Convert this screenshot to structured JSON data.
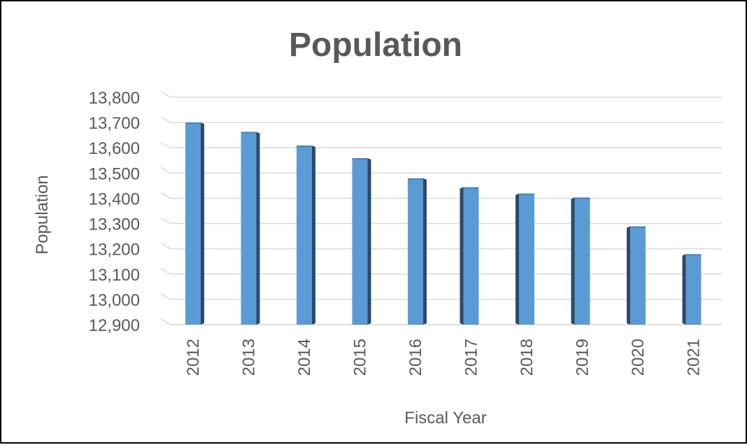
{
  "chart_data": {
    "type": "bar",
    "title": "Population",
    "xlabel": "Fiscal Year",
    "ylabel": "Population",
    "categories": [
      "2012",
      "2013",
      "2014",
      "2015",
      "2016",
      "2017",
      "2018",
      "2019",
      "2020",
      "2021"
    ],
    "values": [
      13700,
      13663,
      13609,
      13559,
      13479,
      13444,
      13419,
      13403,
      13289,
      13179
    ],
    "ylim": [
      12900,
      13800
    ],
    "yticks": [
      12900,
      13000,
      13100,
      13200,
      13300,
      13400,
      13500,
      13600,
      13700,
      13800
    ],
    "ytick_labels": [
      "12,900",
      "13,000",
      "13,100",
      "13,200",
      "13,300",
      "13,400",
      "13,500",
      "13,600",
      "13,700",
      "13,800"
    ],
    "grid": true,
    "legend": "none",
    "colors": {
      "bar_front": "#5b9bd5",
      "bar_side": "#2e4a68",
      "gridline": "#d9d9d9",
      "text": "#595959",
      "title": "#595959"
    }
  }
}
